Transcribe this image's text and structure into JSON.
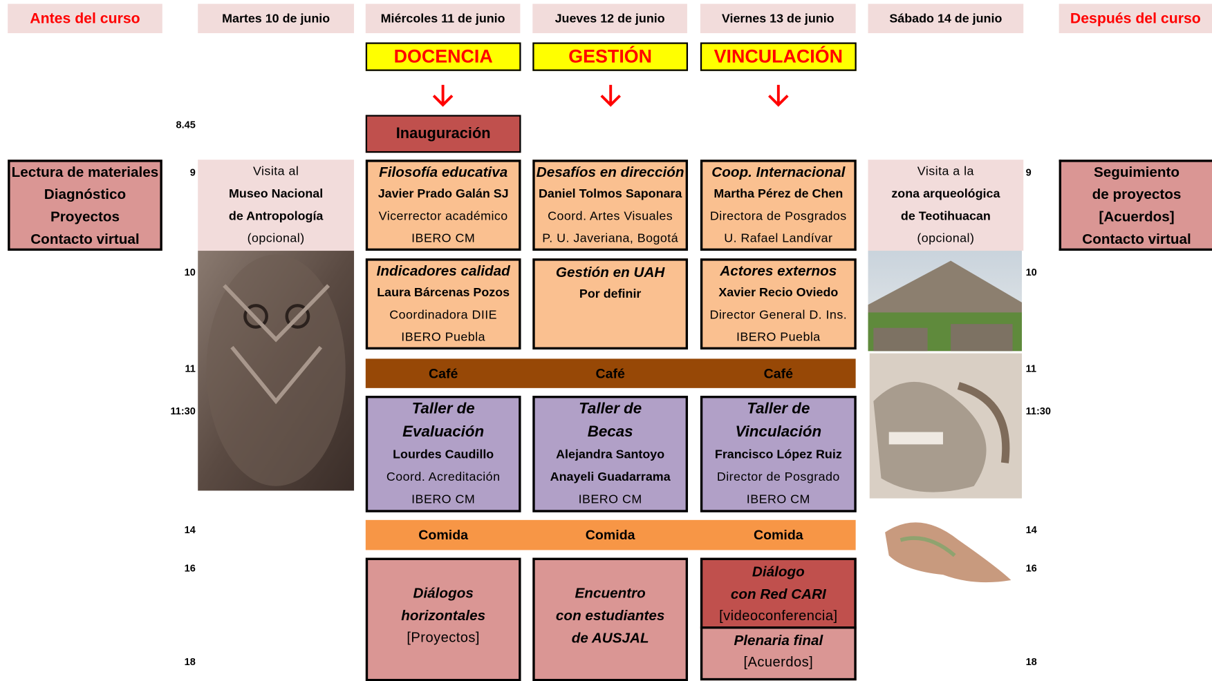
{
  "headers": [
    "Antes del curso",
    "Martes 10 de junio",
    "Miércoles 11 de junio",
    "Jueves 12 de junio",
    "Viernes 13 de junio",
    "Sábado 14 de junio",
    "Después del curso"
  ],
  "themes": [
    "DOCENCIA",
    "GESTIÓN",
    "VINCULACIÓN"
  ],
  "times_left": [
    "8.45",
    "9",
    "10",
    "11",
    "11:30",
    "14",
    "16",
    "18"
  ],
  "times_right": [
    "9",
    "10",
    "11",
    "11:30",
    "14",
    "16",
    "18"
  ],
  "before": [
    "Lectura de materiales",
    "Diagnóstico",
    "Proyectos",
    "Contacto virtual"
  ],
  "after": [
    "Seguimiento",
    "de proyectos",
    "[Acuerdos]",
    "Contacto virtual"
  ],
  "tuesday": [
    "Visita al",
    "Museo Nacional",
    "de Antropología",
    "(opcional)"
  ],
  "saturday": [
    "Visita a la",
    "zona arqueológica",
    "de Teotihuacan",
    "(opcional)"
  ],
  "inauguration": "Inauguración",
  "morning_1": [
    {
      "title": "Filosofía educativa",
      "name": "Javier Prado Galán SJ",
      "role": "Vicerrector académico",
      "org": "IBERO CM"
    },
    {
      "title": "Desafíos en dirección",
      "name": "Daniel Tolmos Saponara",
      "role": "Coord. Artes Visuales",
      "org": "P. U. Javeriana, Bogotá"
    },
    {
      "title": "Coop. Internacional",
      "name": "Martha Pérez de Chen",
      "role": "Directora de Posgrados",
      "org": "U. Rafael Landívar"
    }
  ],
  "morning_2": [
    {
      "title": "Indicadores calidad",
      "name": "Laura Bárcenas Pozos",
      "role": "Coordinadora  DIIE",
      "org": "IBERO Puebla"
    },
    {
      "title": "Gestión en UAH",
      "name": "Por definir"
    },
    {
      "title": "Actores externos",
      "name": "Xavier Recio Oviedo",
      "role": "Director General D. Ins.",
      "org": "IBERO Puebla"
    }
  ],
  "coffee": [
    "Café",
    "Café",
    "Café"
  ],
  "workshops": [
    {
      "title": [
        "Taller de",
        "Evaluación"
      ],
      "lines": [
        "Lourdes Caudillo",
        "Coord. Acreditación",
        "IBERO CM"
      ]
    },
    {
      "title": [
        "Taller de",
        "Becas"
      ],
      "lines": [
        "Alejandra Santoyo",
        "Anayeli Guadarrama",
        "IBERO CM"
      ]
    },
    {
      "title": [
        "Taller de",
        "Vinculación"
      ],
      "lines": [
        "Francisco López Ruiz",
        "Director de Posgrado",
        "IBERO CM"
      ]
    }
  ],
  "lunch": [
    "Comida",
    "Comida",
    "Comida"
  ],
  "afternoon": {
    "wednesday": {
      "title": [
        "Diálogos",
        "horizontales"
      ],
      "note": "[Proyectos]"
    },
    "thursday": {
      "title": [
        "Encuentro",
        "con estudiantes",
        "de AUSJAL"
      ]
    },
    "friday": [
      {
        "title": [
          "Diálogo",
          "con Red CARI"
        ],
        "note": "[videoconferencia]"
      },
      {
        "title": [
          "Plenaria final"
        ],
        "note": "[Acuerdos]"
      }
    ]
  }
}
